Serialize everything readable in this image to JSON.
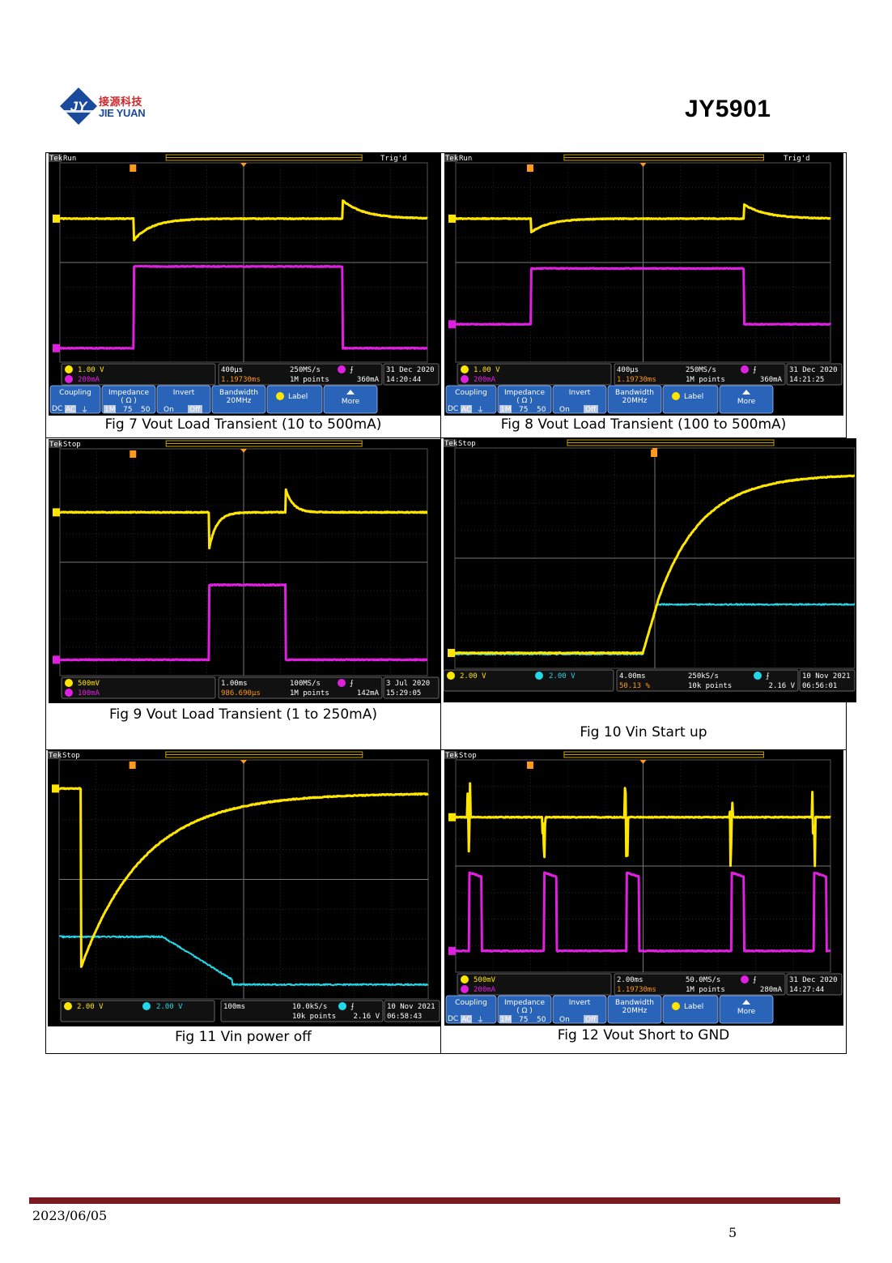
{
  "header": {
    "logo_cn": "接源科技",
    "logo_en": "JIE YUAN",
    "logo_mark": "JY",
    "title": "JY5901"
  },
  "labels": {
    "tek": "Tek",
    "trigd": "Trig'd",
    "coupling": "Coupling",
    "impedance": "Impedance",
    "ohm": "( Ω )",
    "dc": "DC",
    "ac": "AC",
    "gnd": "⏚",
    "i1m": "1M",
    "i75": "75",
    "i50": "50",
    "invert": "Invert",
    "on": "On",
    "off": "Off",
    "bandwidth": "Bandwidth",
    "bw": "20MHz",
    "label": "Label",
    "more": "More"
  },
  "figures": [
    {
      "caption": "Fig 7 Vout Load Transient (10 to 500mA)",
      "state": "Run",
      "ch1": "1.00 V",
      "ch3": "200mA",
      "timebase": "400μs",
      "delay": "1.19730ms",
      "rate": "250MS/s",
      "points": "1M points",
      "trig_ch": "3",
      "trig_level": "360mA",
      "date": "31 Dec 2020",
      "time": "14:20:44"
    },
    {
      "caption": "Fig 8 Vout Load Transient (100 to 500mA)",
      "state": "Run",
      "ch1": "1.00 V",
      "ch3": "200mA",
      "timebase": "400μs",
      "delay": "1.19730ms",
      "rate": "250MS/s",
      "points": "1M points",
      "trig_ch": "3",
      "trig_level": "360mA",
      "date": "31 Dec 2020",
      "time": "14:21:25"
    },
    {
      "caption": "Fig 9 Vout Load Transient (1 to 250mA)",
      "state": "Stop",
      "ch1": "500mV",
      "ch3": "100mA",
      "timebase": "1.00ms",
      "delay": "986.690μs",
      "rate": "100MS/s",
      "points": "1M points",
      "trig_ch": "3",
      "trig_level": "142mA",
      "date": "3 Jul 2020",
      "time": "15:29:05"
    },
    {
      "caption": "Fig 10 Vin Start up",
      "state": "Stop",
      "ch1": "2.00 V",
      "ch2": "2.00 V",
      "timebase": "4.00ms",
      "delay": "50.13 %",
      "rate": "250kS/s",
      "points": "10k points",
      "trig_ch": "2",
      "trig_level": "2.16 V",
      "date": "10 Nov 2021",
      "time": "06:56:01"
    },
    {
      "caption": "Fig 11 Vin power off",
      "state": "Stop",
      "ch1": "2.00 V",
      "ch2": "2.00 V",
      "timebase": "100ms",
      "rate": "10.0kS/s",
      "points": "10k points",
      "trig_ch": "2",
      "trig_level": "2.16 V",
      "date": "10 Nov 2021",
      "time": "06:58:43"
    },
    {
      "caption": "Fig 12 Vout Short to GND",
      "state": "Stop",
      "ch1": "500mV",
      "ch3": "200mA",
      "timebase": "2.00ms",
      "delay": "1.19730ms",
      "rate": "50.0MS/s",
      "points": "1M points",
      "trig_ch": "3",
      "trig_level": "280mA",
      "date": "31 Dec 2020",
      "time": "14:27:44"
    }
  ],
  "colors": {
    "ch1": "#ffe600",
    "ch2": "#20d8e8",
    "ch3": "#e020e0",
    "orange": "#ff9a1a",
    "menu_blue": "#2a64b8"
  },
  "footer": {
    "date": "2023/06/05",
    "page": "5"
  }
}
